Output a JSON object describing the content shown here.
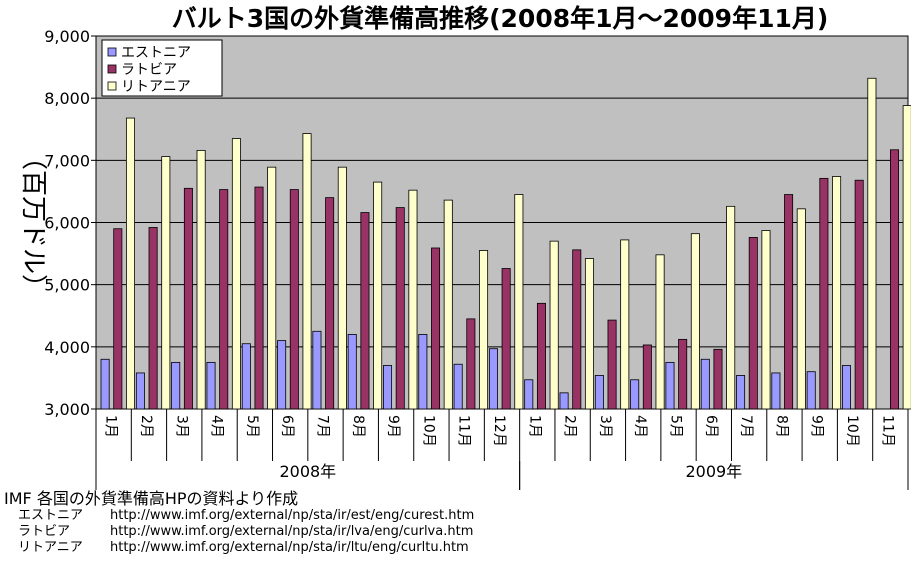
{
  "chart_data": {
    "type": "bar",
    "title": "バルト3国の外貨準備高推移(2008年1月～2009年11月)",
    "ylabel": "（百万ドル）",
    "ylim": [
      3000,
      9000
    ],
    "yticks": [
      "3,000",
      "4,000",
      "5,000",
      "6,000",
      "7,000",
      "8,000",
      "9,000"
    ],
    "grid": true,
    "legend": "top-left",
    "categories": [
      "1月",
      "2月",
      "3月",
      "4月",
      "5月",
      "6月",
      "7月",
      "8月",
      "9月",
      "10月",
      "11月",
      "12月",
      "1月",
      "2月",
      "3月",
      "4月",
      "5月",
      "6月",
      "7月",
      "8月",
      "9月",
      "10月",
      "11月"
    ],
    "groups": [
      {
        "label": "2008年",
        "count": 12
      },
      {
        "label": "2009年",
        "count": 11
      }
    ],
    "series": [
      {
        "name": "エストニア",
        "color": "#9999ff",
        "values": [
          3800,
          3580,
          3750,
          3750,
          4050,
          4100,
          4250,
          4200,
          3700,
          4200,
          3720,
          3970,
          3470,
          3260,
          3540,
          3470,
          3750,
          3800,
          3540,
          3580,
          3600,
          3700,
          null
        ]
      },
      {
        "name": "ラトビア",
        "color": "#993366",
        "values": [
          5900,
          5920,
          6550,
          6530,
          6570,
          6530,
          6400,
          6160,
          6240,
          5590,
          4450,
          5260,
          4700,
          5560,
          4430,
          4030,
          4120,
          3960,
          5760,
          6450,
          6710,
          6680,
          7170
        ]
      },
      {
        "name": "リトアニア",
        "color": "#ffffcc",
        "values": [
          7680,
          7060,
          7160,
          7350,
          6890,
          7430,
          6890,
          6650,
          6520,
          6360,
          5550,
          6450,
          5700,
          5420,
          5720,
          5480,
          5820,
          6260,
          5870,
          6220,
          6740,
          8320,
          7880
        ]
      }
    ]
  },
  "notes": {
    "source": "IMF 各国の外貨準備高HPの資料より作成",
    "links": [
      {
        "country": "エストニア",
        "url": "http://www.imf.org/external/np/sta/ir/est/eng/curest.htm"
      },
      {
        "country": "ラトビア",
        "url": "http://www.imf.org/external/np/sta/ir/lva/eng/curlva.htm"
      },
      {
        "country": "リトアニア",
        "url": "http://www.imf.org/external/np/sta/ir/ltu/eng/curltu.htm"
      }
    ]
  }
}
